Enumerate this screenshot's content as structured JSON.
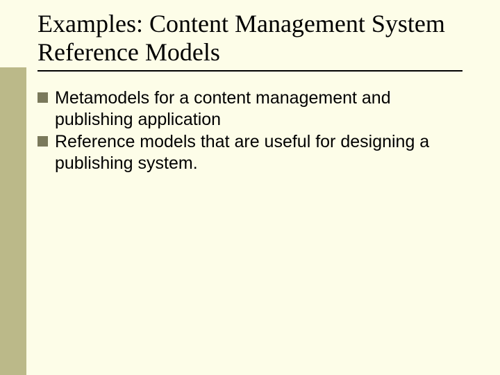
{
  "slide": {
    "background_color": "#fdfde8",
    "sidebar_color": "#bbb989",
    "bullet_color": "#7a795b",
    "title_font": "Times New Roman",
    "body_font": "Arial",
    "title_fontsize": 36,
    "body_fontsize": 25,
    "title": "Examples: Content Management System Reference Models",
    "bullets": [
      "Metamodels for a content management and publishing application",
      "Reference models that are useful for designing a publishing system."
    ]
  }
}
